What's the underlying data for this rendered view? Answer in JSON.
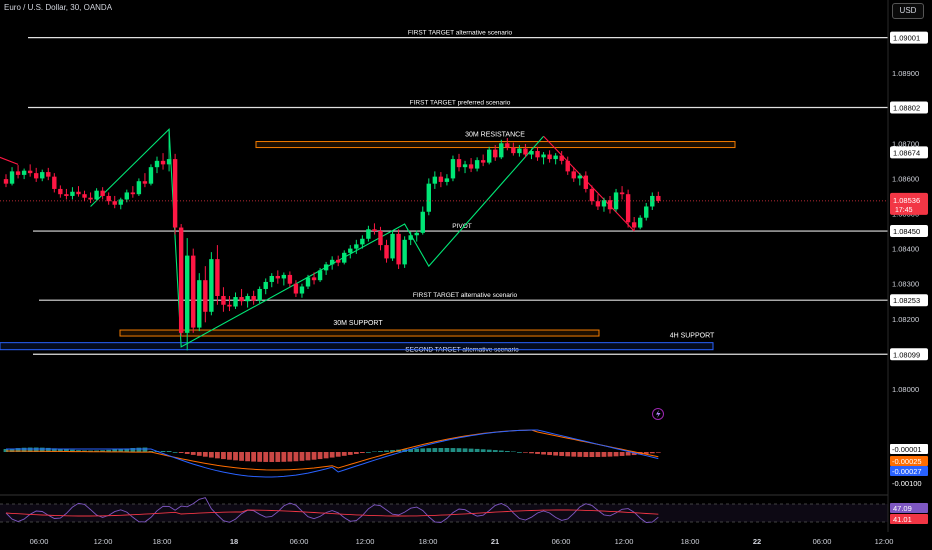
{
  "header": {
    "title": "Euro / U.S. Dollar, 30, OANDA",
    "currency": "USD"
  },
  "chart_data": {
    "type": "candlestick",
    "price_axis": {
      "ticks": [
        1.089,
        1.088,
        1.087,
        1.086,
        1.085,
        1.084,
        1.083,
        1.082,
        1.081,
        1.08
      ],
      "tick_labels": [
        "1.08900",
        "1.08800",
        "1.08700",
        "1.08600",
        "1.08500",
        "1.08400",
        "1.08300",
        "1.08200",
        "1.08100",
        "1.08000"
      ],
      "ylim": [
        1.07965,
        1.09075
      ]
    },
    "time_axis": {
      "labels": [
        "06:00",
        "12:00",
        "18:00",
        "18",
        "06:00",
        "12:00",
        "18:00",
        "21",
        "06:00",
        "12:00",
        "18:00",
        "22",
        "06:00",
        "12:00"
      ]
    },
    "current_price": {
      "value": 1.08536,
      "label": "1.08536",
      "countdown": "17:45",
      "color": "#f23645"
    },
    "levels": [
      {
        "label": "FIRST TARGET alternative scenario",
        "price": 1.09001,
        "price_label": "1.09001"
      },
      {
        "label": "FIRST TARGET preferred scenario",
        "price": 1.08802,
        "price_label": "1.08802"
      },
      {
        "label": "",
        "price": 1.08674,
        "price_label": "1.08674"
      },
      {
        "label": "PIVOT",
        "price": 1.0845,
        "price_label": "1.08450"
      },
      {
        "label": "FIRST TARGET alternative scenario",
        "price": 1.08253,
        "price_label": "1.08253"
      },
      {
        "label": "SECOND TARGET alternative scenario",
        "price": 1.08099,
        "price_label": "1.08099"
      }
    ],
    "zones": [
      {
        "label": "30M RESISTANCE",
        "low": 1.08688,
        "high": 1.08705,
        "color": "#f57c00"
      },
      {
        "label": "30M SUPPORT",
        "low": 1.08152,
        "high": 1.08168,
        "color": "#f57c00"
      },
      {
        "label": "4H SUPPORT",
        "low": 1.08112,
        "high": 1.08132,
        "color": "#2962ff"
      }
    ],
    "candles": [
      {
        "o": 1.08598,
        "h": 1.08612,
        "l": 1.08575,
        "c": 1.08585
      },
      {
        "o": 1.08585,
        "h": 1.08632,
        "l": 1.0858,
        "c": 1.0862
      },
      {
        "o": 1.0862,
        "h": 1.08638,
        "l": 1.086,
        "c": 1.0861
      },
      {
        "o": 1.0861,
        "h": 1.08628,
        "l": 1.08598,
        "c": 1.08622
      },
      {
        "o": 1.08622,
        "h": 1.0864,
        "l": 1.08605,
        "c": 1.08615
      },
      {
        "o": 1.08615,
        "h": 1.0863,
        "l": 1.0859,
        "c": 1.086
      },
      {
        "o": 1.086,
        "h": 1.08625,
        "l": 1.08592,
        "c": 1.08618
      },
      {
        "o": 1.08618,
        "h": 1.0863,
        "l": 1.08595,
        "c": 1.08605
      },
      {
        "o": 1.08605,
        "h": 1.08615,
        "l": 1.0856,
        "c": 1.0857
      },
      {
        "o": 1.0857,
        "h": 1.0858,
        "l": 1.08545,
        "c": 1.08555
      },
      {
        "o": 1.08555,
        "h": 1.0857,
        "l": 1.0854,
        "c": 1.0855
      },
      {
        "o": 1.0855,
        "h": 1.08575,
        "l": 1.0854,
        "c": 1.08562
      },
      {
        "o": 1.08562,
        "h": 1.08578,
        "l": 1.08548,
        "c": 1.08555
      },
      {
        "o": 1.08555,
        "h": 1.08565,
        "l": 1.08535,
        "c": 1.08545
      },
      {
        "o": 1.08545,
        "h": 1.0856,
        "l": 1.0853,
        "c": 1.0854
      },
      {
        "o": 1.0854,
        "h": 1.08572,
        "l": 1.08535,
        "c": 1.08565
      },
      {
        "o": 1.08565,
        "h": 1.08575,
        "l": 1.0854,
        "c": 1.0855
      },
      {
        "o": 1.0855,
        "h": 1.0856,
        "l": 1.08525,
        "c": 1.08535
      },
      {
        "o": 1.08535,
        "h": 1.0855,
        "l": 1.08515,
        "c": 1.08525
      },
      {
        "o": 1.08525,
        "h": 1.08545,
        "l": 1.08512,
        "c": 1.0854
      },
      {
        "o": 1.0854,
        "h": 1.08568,
        "l": 1.08532,
        "c": 1.0856
      },
      {
        "o": 1.0856,
        "h": 1.08578,
        "l": 1.08545,
        "c": 1.08555
      },
      {
        "o": 1.08555,
        "h": 1.086,
        "l": 1.0855,
        "c": 1.08592
      },
      {
        "o": 1.08592,
        "h": 1.08615,
        "l": 1.08575,
        "c": 1.08585
      },
      {
        "o": 1.08585,
        "h": 1.0864,
        "l": 1.0858,
        "c": 1.08632
      },
      {
        "o": 1.08632,
        "h": 1.08662,
        "l": 1.08615,
        "c": 1.0865
      },
      {
        "o": 1.0865,
        "h": 1.08672,
        "l": 1.08625,
        "c": 1.0864
      },
      {
        "o": 1.0864,
        "h": 1.0874,
        "l": 1.0862,
        "c": 1.08655
      },
      {
        "o": 1.08655,
        "h": 1.0867,
        "l": 1.0844,
        "c": 1.0846
      },
      {
        "o": 1.0846,
        "h": 1.0847,
        "l": 1.0815,
        "c": 1.0816
      },
      {
        "o": 1.0816,
        "h": 1.0843,
        "l": 1.0811,
        "c": 1.0838
      },
      {
        "o": 1.0838,
        "h": 1.084,
        "l": 1.0816,
        "c": 1.08175
      },
      {
        "o": 1.08175,
        "h": 1.0833,
        "l": 1.08165,
        "c": 1.0831
      },
      {
        "o": 1.0831,
        "h": 1.0835,
        "l": 1.0819,
        "c": 1.0822
      },
      {
        "o": 1.0822,
        "h": 1.0839,
        "l": 1.0821,
        "c": 1.0837
      },
      {
        "o": 1.0837,
        "h": 1.0841,
        "l": 1.0824,
        "c": 1.08265
      },
      {
        "o": 1.08265,
        "h": 1.0829,
        "l": 1.0822,
        "c": 1.0824
      },
      {
        "o": 1.0824,
        "h": 1.08265,
        "l": 1.08222,
        "c": 1.08235
      },
      {
        "o": 1.08235,
        "h": 1.08275,
        "l": 1.08228,
        "c": 1.08262
      },
      {
        "o": 1.08262,
        "h": 1.08285,
        "l": 1.08238,
        "c": 1.0825
      },
      {
        "o": 1.0825,
        "h": 1.08272,
        "l": 1.08232,
        "c": 1.08265
      },
      {
        "o": 1.08265,
        "h": 1.0828,
        "l": 1.0824,
        "c": 1.08252
      },
      {
        "o": 1.08252,
        "h": 1.08292,
        "l": 1.08245,
        "c": 1.08285
      },
      {
        "o": 1.08285,
        "h": 1.08315,
        "l": 1.0827,
        "c": 1.08305
      },
      {
        "o": 1.08305,
        "h": 1.0833,
        "l": 1.0829,
        "c": 1.08322
      },
      {
        "o": 1.08322,
        "h": 1.08338,
        "l": 1.083,
        "c": 1.08315
      },
      {
        "o": 1.08315,
        "h": 1.08332,
        "l": 1.08295,
        "c": 1.08325
      },
      {
        "o": 1.08325,
        "h": 1.08335,
        "l": 1.0829,
        "c": 1.083
      },
      {
        "o": 1.083,
        "h": 1.0831,
        "l": 1.08262,
        "c": 1.08272
      },
      {
        "o": 1.08272,
        "h": 1.083,
        "l": 1.0826,
        "c": 1.08292
      },
      {
        "o": 1.08292,
        "h": 1.08325,
        "l": 1.08285,
        "c": 1.08318
      },
      {
        "o": 1.08318,
        "h": 1.08332,
        "l": 1.08298,
        "c": 1.0831
      },
      {
        "o": 1.0831,
        "h": 1.08345,
        "l": 1.08305,
        "c": 1.08338
      },
      {
        "o": 1.08338,
        "h": 1.08362,
        "l": 1.08325,
        "c": 1.08355
      },
      {
        "o": 1.08355,
        "h": 1.08378,
        "l": 1.0834,
        "c": 1.08368
      },
      {
        "o": 1.08368,
        "h": 1.0838,
        "l": 1.0835,
        "c": 1.0836
      },
      {
        "o": 1.0836,
        "h": 1.08395,
        "l": 1.08355,
        "c": 1.08388
      },
      {
        "o": 1.08388,
        "h": 1.0841,
        "l": 1.08372,
        "c": 1.084
      },
      {
        "o": 1.084,
        "h": 1.08425,
        "l": 1.08385,
        "c": 1.08412
      },
      {
        "o": 1.08412,
        "h": 1.08438,
        "l": 1.084,
        "c": 1.08428
      },
      {
        "o": 1.08428,
        "h": 1.08465,
        "l": 1.0842,
        "c": 1.08455
      },
      {
        "o": 1.08455,
        "h": 1.08472,
        "l": 1.0844,
        "c": 1.0845
      },
      {
        "o": 1.0845,
        "h": 1.08462,
        "l": 1.08395,
        "c": 1.0841
      },
      {
        "o": 1.0841,
        "h": 1.08425,
        "l": 1.0836,
        "c": 1.08372
      },
      {
        "o": 1.08372,
        "h": 1.08452,
        "l": 1.08365,
        "c": 1.08442
      },
      {
        "o": 1.08442,
        "h": 1.08455,
        "l": 1.08342,
        "c": 1.08355
      },
      {
        "o": 1.08355,
        "h": 1.08435,
        "l": 1.08345,
        "c": 1.08425
      },
      {
        "o": 1.08425,
        "h": 1.08448,
        "l": 1.0841,
        "c": 1.08438
      },
      {
        "o": 1.08438,
        "h": 1.08452,
        "l": 1.0842,
        "c": 1.08445
      },
      {
        "o": 1.08445,
        "h": 1.0852,
        "l": 1.0844,
        "c": 1.08505
      },
      {
        "o": 1.08505,
        "h": 1.086,
        "l": 1.08495,
        "c": 1.08585
      },
      {
        "o": 1.08585,
        "h": 1.0862,
        "l": 1.0857,
        "c": 1.08605
      },
      {
        "o": 1.08605,
        "h": 1.08618,
        "l": 1.08575,
        "c": 1.0859
      },
      {
        "o": 1.0859,
        "h": 1.08612,
        "l": 1.0858,
        "c": 1.086
      },
      {
        "o": 1.086,
        "h": 1.08665,
        "l": 1.08592,
        "c": 1.08655
      },
      {
        "o": 1.08655,
        "h": 1.0867,
        "l": 1.0862,
        "c": 1.08632
      },
      {
        "o": 1.08632,
        "h": 1.0865,
        "l": 1.08615,
        "c": 1.0864
      },
      {
        "o": 1.0864,
        "h": 1.08658,
        "l": 1.08618,
        "c": 1.08628
      },
      {
        "o": 1.08628,
        "h": 1.0866,
        "l": 1.0862,
        "c": 1.08652
      },
      {
        "o": 1.08652,
        "h": 1.08668,
        "l": 1.08635,
        "c": 1.08645
      },
      {
        "o": 1.08645,
        "h": 1.0869,
        "l": 1.0864,
        "c": 1.08682
      },
      {
        "o": 1.08682,
        "h": 1.08695,
        "l": 1.0865,
        "c": 1.0866
      },
      {
        "o": 1.0866,
        "h": 1.0871,
        "l": 1.08655,
        "c": 1.087
      },
      {
        "o": 1.087,
        "h": 1.08715,
        "l": 1.0868,
        "c": 1.08688
      },
      {
        "o": 1.08688,
        "h": 1.08702,
        "l": 1.08665,
        "c": 1.08672
      },
      {
        "o": 1.08672,
        "h": 1.08695,
        "l": 1.08662,
        "c": 1.08685
      },
      {
        "o": 1.08685,
        "h": 1.08698,
        "l": 1.0866,
        "c": 1.08668
      },
      {
        "o": 1.08668,
        "h": 1.08685,
        "l": 1.08655,
        "c": 1.08678
      },
      {
        "o": 1.08678,
        "h": 1.0869,
        "l": 1.0865,
        "c": 1.0866
      },
      {
        "o": 1.0866,
        "h": 1.08675,
        "l": 1.0864,
        "c": 1.08668
      },
      {
        "o": 1.08668,
        "h": 1.0868,
        "l": 1.08645,
        "c": 1.08655
      },
      {
        "o": 1.08655,
        "h": 1.08672,
        "l": 1.0864,
        "c": 1.08665
      },
      {
        "o": 1.08665,
        "h": 1.08678,
        "l": 1.0864,
        "c": 1.0865
      },
      {
        "o": 1.0865,
        "h": 1.08662,
        "l": 1.0861,
        "c": 1.0862
      },
      {
        "o": 1.0862,
        "h": 1.08632,
        "l": 1.0859,
        "c": 1.086
      },
      {
        "o": 1.086,
        "h": 1.08615,
        "l": 1.0858,
        "c": 1.08608
      },
      {
        "o": 1.08608,
        "h": 1.0862,
        "l": 1.0856,
        "c": 1.0857
      },
      {
        "o": 1.0857,
        "h": 1.0858,
        "l": 1.08525,
        "c": 1.08535
      },
      {
        "o": 1.08535,
        "h": 1.08555,
        "l": 1.0851,
        "c": 1.0852
      },
      {
        "o": 1.0852,
        "h": 1.08545,
        "l": 1.08505,
        "c": 1.08538
      },
      {
        "o": 1.08538,
        "h": 1.0855,
        "l": 1.085,
        "c": 1.08512
      },
      {
        "o": 1.08512,
        "h": 1.0857,
        "l": 1.08505,
        "c": 1.0856
      },
      {
        "o": 1.0856,
        "h": 1.08578,
        "l": 1.0854,
        "c": 1.08555
      },
      {
        "o": 1.08555,
        "h": 1.08568,
        "l": 1.0846,
        "c": 1.08475
      },
      {
        "o": 1.08475,
        "h": 1.0849,
        "l": 1.0845,
        "c": 1.0846
      },
      {
        "o": 1.0846,
        "h": 1.08495,
        "l": 1.08455,
        "c": 1.08488
      },
      {
        "o": 1.08488,
        "h": 1.0853,
        "l": 1.0848,
        "c": 1.0852
      },
      {
        "o": 1.0852,
        "h": 1.0856,
        "l": 1.0851,
        "c": 1.0855
      },
      {
        "o": 1.0855,
        "h": 1.08562,
        "l": 1.0853,
        "c": 1.08536
      }
    ],
    "pattern_lines": [
      {
        "color": "#ff1744",
        "points": [
          [
            -4,
            1.0868
          ],
          [
            2,
            1.0864
          ]
        ]
      },
      {
        "color": "#00e676",
        "points": [
          [
            14,
            1.0852
          ],
          [
            27,
            1.0874
          ],
          [
            29,
            1.0812
          ],
          [
            66,
            1.0847
          ],
          [
            70,
            1.0835
          ],
          [
            89,
            1.0872
          ]
        ]
      },
      {
        "color": "#ff1744",
        "points": [
          [
            89,
            1.0872
          ],
          [
            104,
            1.0845
          ]
        ]
      }
    ],
    "macd": {
      "labels": [
        "-0.00001",
        "-0.00025",
        "-0.00027",
        "-0.00100"
      ],
      "label_colors": [
        "#ffffff",
        "#ff6d00",
        "#2962ff",
        null
      ]
    },
    "rsi": {
      "labels": [
        "47.09",
        "41.01"
      ],
      "label_colors": [
        "#7e57c2",
        "#f23645"
      ]
    },
    "colors": {
      "up": "#26a69a",
      "down": "#ef5350",
      "up_bright": "#00e676",
      "down_bright": "#ff1744"
    }
  }
}
